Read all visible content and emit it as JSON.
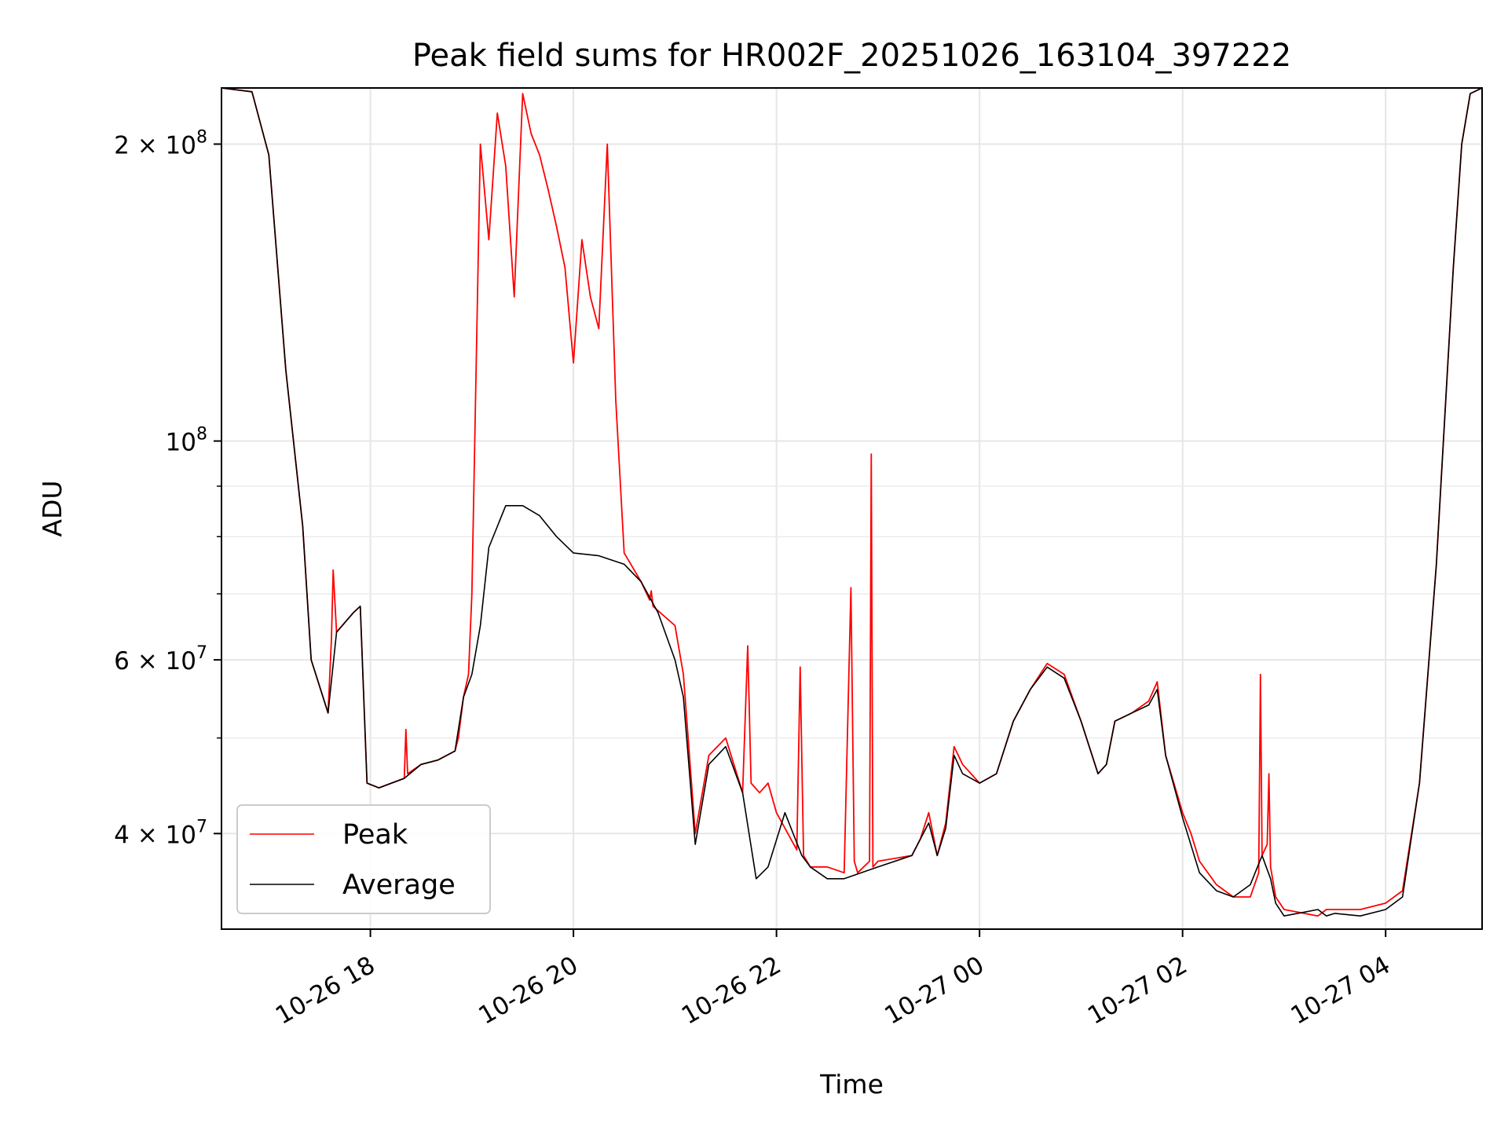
{
  "chart_data": {
    "type": "line",
    "title": "Peak field sums for HR002F_20251026_163104_397222",
    "xlabel": "Time",
    "ylabel": "ADU",
    "yscale": "log",
    "xlim": [
      "2025-10-26 16:32",
      "2025-10-27 04:57"
    ],
    "ylim": [
      32000000,
      228000000
    ],
    "grid": true,
    "legend_position": "lower-left",
    "x_ticks": [
      {
        "value": "2025-10-26 18:00",
        "label": "10-26 18"
      },
      {
        "value": "2025-10-26 20:00",
        "label": "10-26 20"
      },
      {
        "value": "2025-10-26 22:00",
        "label": "10-26 22"
      },
      {
        "value": "2025-10-27 00:00",
        "label": "10-27 00"
      },
      {
        "value": "2025-10-27 02:00",
        "label": "10-27 02"
      },
      {
        "value": "2025-10-27 04:00",
        "label": "10-27 04"
      }
    ],
    "y_ticks": [
      {
        "value": 40000000,
        "label": "4 × 10",
        "exp": "7"
      },
      {
        "value": 60000000,
        "label": "6 × 10",
        "exp": "7"
      },
      {
        "value": 100000000,
        "label": "10",
        "exp": "8"
      },
      {
        "value": 200000000,
        "label": "2 × 10",
        "exp": "8"
      }
    ],
    "y_minor_ticks": [
      50000000,
      70000000,
      80000000,
      90000000
    ],
    "series": [
      {
        "name": "Peak",
        "color": "#ff0000",
        "x": [
          "2025-10-26 16:32",
          "2025-10-26 16:50",
          "2025-10-26 17:00",
          "2025-10-26 17:10",
          "2025-10-26 17:20",
          "2025-10-26 17:25",
          "2025-10-26 17:35",
          "2025-10-26 17:37",
          "2025-10-26 17:38",
          "2025-10-26 17:40",
          "2025-10-26 17:50",
          "2025-10-26 17:54",
          "2025-10-26 17:58",
          "2025-10-26 18:05",
          "2025-10-26 18:20",
          "2025-10-26 18:21",
          "2025-10-26 18:22",
          "2025-10-26 18:30",
          "2025-10-26 18:40",
          "2025-10-26 18:50",
          "2025-10-26 18:52",
          "2025-10-26 18:55",
          "2025-10-26 18:58",
          "2025-10-26 19:00",
          "2025-10-26 19:05",
          "2025-10-26 19:10",
          "2025-10-26 19:15",
          "2025-10-26 19:20",
          "2025-10-26 19:25",
          "2025-10-26 19:30",
          "2025-10-26 19:35",
          "2025-10-26 19:40",
          "2025-10-26 19:45",
          "2025-10-26 19:50",
          "2025-10-26 19:55",
          "2025-10-26 20:00",
          "2025-10-26 20:05",
          "2025-10-26 20:10",
          "2025-10-26 20:15",
          "2025-10-26 20:20",
          "2025-10-26 20:25",
          "2025-10-26 20:30",
          "2025-10-26 20:40",
          "2025-10-26 20:45",
          "2025-10-26 20:46",
          "2025-10-26 20:47",
          "2025-10-26 21:00",
          "2025-10-26 21:05",
          "2025-10-26 21:12",
          "2025-10-26 21:20",
          "2025-10-26 21:30",
          "2025-10-26 21:40",
          "2025-10-26 21:43",
          "2025-10-26 21:45",
          "2025-10-26 21:50",
          "2025-10-26 21:55",
          "2025-10-26 22:00",
          "2025-10-26 22:12",
          "2025-10-26 22:14",
          "2025-10-26 22:16",
          "2025-10-26 22:20",
          "2025-10-26 22:30",
          "2025-10-26 22:40",
          "2025-10-26 22:44",
          "2025-10-26 22:46",
          "2025-10-26 22:48",
          "2025-10-26 22:55",
          "2025-10-26 22:56",
          "2025-10-26 22:57",
          "2025-10-26 23:00",
          "2025-10-26 23:20",
          "2025-10-26 23:25",
          "2025-10-26 23:30",
          "2025-10-26 23:35",
          "2025-10-26 23:40",
          "2025-10-26 23:45",
          "2025-10-26 23:50",
          "2025-10-27 00:00",
          "2025-10-27 00:10",
          "2025-10-27 00:20",
          "2025-10-27 00:30",
          "2025-10-27 00:40",
          "2025-10-27 00:50",
          "2025-10-27 01:00",
          "2025-10-27 01:10",
          "2025-10-27 01:15",
          "2025-10-27 01:20",
          "2025-10-27 01:30",
          "2025-10-27 01:40",
          "2025-10-27 01:45",
          "2025-10-27 01:50",
          "2025-10-27 02:00",
          "2025-10-27 02:05",
          "2025-10-27 02:10",
          "2025-10-27 02:20",
          "2025-10-27 02:30",
          "2025-10-27 02:40",
          "2025-10-27 02:45",
          "2025-10-27 02:46",
          "2025-10-27 02:47",
          "2025-10-27 02:50",
          "2025-10-27 02:51",
          "2025-10-27 02:52",
          "2025-10-27 02:55",
          "2025-10-27 03:00",
          "2025-10-27 03:20",
          "2025-10-27 03:25",
          "2025-10-27 03:30",
          "2025-10-27 03:45",
          "2025-10-27 04:00",
          "2025-10-27 04:10",
          "2025-10-27 04:20",
          "2025-10-27 04:30",
          "2025-10-27 04:40",
          "2025-10-27 04:45",
          "2025-10-27 04:50",
          "2025-10-27 04:57"
        ],
        "y": [
          228000000,
          226000000,
          195000000,
          118000000,
          82000000,
          60000000,
          53000000,
          63000000,
          74000000,
          64000000,
          67000000,
          68000000,
          45000000,
          44500000,
          45500000,
          51000000,
          46000000,
          47000000,
          47500000,
          48500000,
          50000000,
          55000000,
          58000000,
          70000000,
          200000000,
          160000000,
          215000000,
          190000000,
          140000000,
          225000000,
          205000000,
          195000000,
          180000000,
          165000000,
          150000000,
          120000000,
          160000000,
          140000000,
          130000000,
          200000000,
          110000000,
          77000000,
          72000000,
          69000000,
          70500000,
          68000000,
          65000000,
          58000000,
          40000000,
          48000000,
          50000000,
          44000000,
          62000000,
          45000000,
          44000000,
          45000000,
          42000000,
          38500000,
          59000000,
          38000000,
          37000000,
          37000000,
          36500000,
          71000000,
          37500000,
          36500000,
          37500000,
          97000000,
          37000000,
          37500000,
          38000000,
          39500000,
          42000000,
          38000000,
          41000000,
          49000000,
          47000000,
          45000000,
          46000000,
          52000000,
          56000000,
          59500000,
          58000000,
          52000000,
          46000000,
          47000000,
          52000000,
          53000000,
          54500000,
          57000000,
          48000000,
          42000000,
          40000000,
          37500000,
          35500000,
          34500000,
          34500000,
          36500000,
          58000000,
          38000000,
          39000000,
          46000000,
          37000000,
          34500000,
          33500000,
          33000000,
          33500000,
          33500000,
          33500000,
          34000000,
          35000000,
          45000000,
          75000000,
          150000000,
          200000000,
          225000000,
          228000000
        ]
      },
      {
        "name": "Average",
        "color": "#000000",
        "x": [
          "2025-10-26 16:32",
          "2025-10-26 16:50",
          "2025-10-26 17:00",
          "2025-10-26 17:10",
          "2025-10-26 17:20",
          "2025-10-26 17:25",
          "2025-10-26 17:35",
          "2025-10-26 17:40",
          "2025-10-26 17:50",
          "2025-10-26 17:54",
          "2025-10-26 17:58",
          "2025-10-26 18:05",
          "2025-10-26 18:20",
          "2025-10-26 18:30",
          "2025-10-26 18:40",
          "2025-10-26 18:50",
          "2025-10-26 18:55",
          "2025-10-26 19:00",
          "2025-10-26 19:05",
          "2025-10-26 19:10",
          "2025-10-26 19:20",
          "2025-10-26 19:30",
          "2025-10-26 19:40",
          "2025-10-26 19:50",
          "2025-10-26 20:00",
          "2025-10-26 20:15",
          "2025-10-26 20:30",
          "2025-10-26 20:40",
          "2025-10-26 20:50",
          "2025-10-26 21:00",
          "2025-10-26 21:05",
          "2025-10-26 21:12",
          "2025-10-26 21:20",
          "2025-10-26 21:30",
          "2025-10-26 21:40",
          "2025-10-26 21:48",
          "2025-10-26 21:55",
          "2025-10-26 22:05",
          "2025-10-26 22:15",
          "2025-10-26 22:20",
          "2025-10-26 22:30",
          "2025-10-26 22:40",
          "2025-10-26 23:00",
          "2025-10-26 23:20",
          "2025-10-26 23:30",
          "2025-10-26 23:35",
          "2025-10-26 23:40",
          "2025-10-26 23:45",
          "2025-10-26 23:50",
          "2025-10-27 00:00",
          "2025-10-27 00:10",
          "2025-10-27 00:20",
          "2025-10-27 00:30",
          "2025-10-27 00:40",
          "2025-10-27 00:50",
          "2025-10-27 01:00",
          "2025-10-27 01:10",
          "2025-10-27 01:15",
          "2025-10-27 01:20",
          "2025-10-27 01:30",
          "2025-10-27 01:40",
          "2025-10-27 01:45",
          "2025-10-27 01:50",
          "2025-10-27 02:00",
          "2025-10-27 02:10",
          "2025-10-27 02:20",
          "2025-10-27 02:30",
          "2025-10-27 02:40",
          "2025-10-27 02:47",
          "2025-10-27 02:52",
          "2025-10-27 02:55",
          "2025-10-27 03:00",
          "2025-10-27 03:20",
          "2025-10-27 03:25",
          "2025-10-27 03:30",
          "2025-10-27 03:45",
          "2025-10-27 04:00",
          "2025-10-27 04:10",
          "2025-10-27 04:20",
          "2025-10-27 04:30",
          "2025-10-27 04:40",
          "2025-10-27 04:45",
          "2025-10-27 04:50",
          "2025-10-27 04:57"
        ],
        "y": [
          228000000,
          226000000,
          195000000,
          118000000,
          82000000,
          60000000,
          53000000,
          64000000,
          67000000,
          68000000,
          45000000,
          44500000,
          45500000,
          47000000,
          47500000,
          48500000,
          55000000,
          58000000,
          65000000,
          78000000,
          86000000,
          86000000,
          84000000,
          80000000,
          77000000,
          76500000,
          75000000,
          72000000,
          67000000,
          60000000,
          55000000,
          39000000,
          47000000,
          49000000,
          44000000,
          36000000,
          37000000,
          42000000,
          38000000,
          37000000,
          36000000,
          36000000,
          37000000,
          38000000,
          41000000,
          38000000,
          40500000,
          48000000,
          46000000,
          45000000,
          46000000,
          52000000,
          56000000,
          59000000,
          57500000,
          52000000,
          46000000,
          47000000,
          52000000,
          53000000,
          54000000,
          56000000,
          48000000,
          41500000,
          36500000,
          35000000,
          34500000,
          35500000,
          38000000,
          36000000,
          34000000,
          33000000,
          33500000,
          33000000,
          33200000,
          33000000,
          33500000,
          34500000,
          45000000,
          75000000,
          150000000,
          200000000,
          225000000,
          228000000
        ]
      }
    ]
  }
}
